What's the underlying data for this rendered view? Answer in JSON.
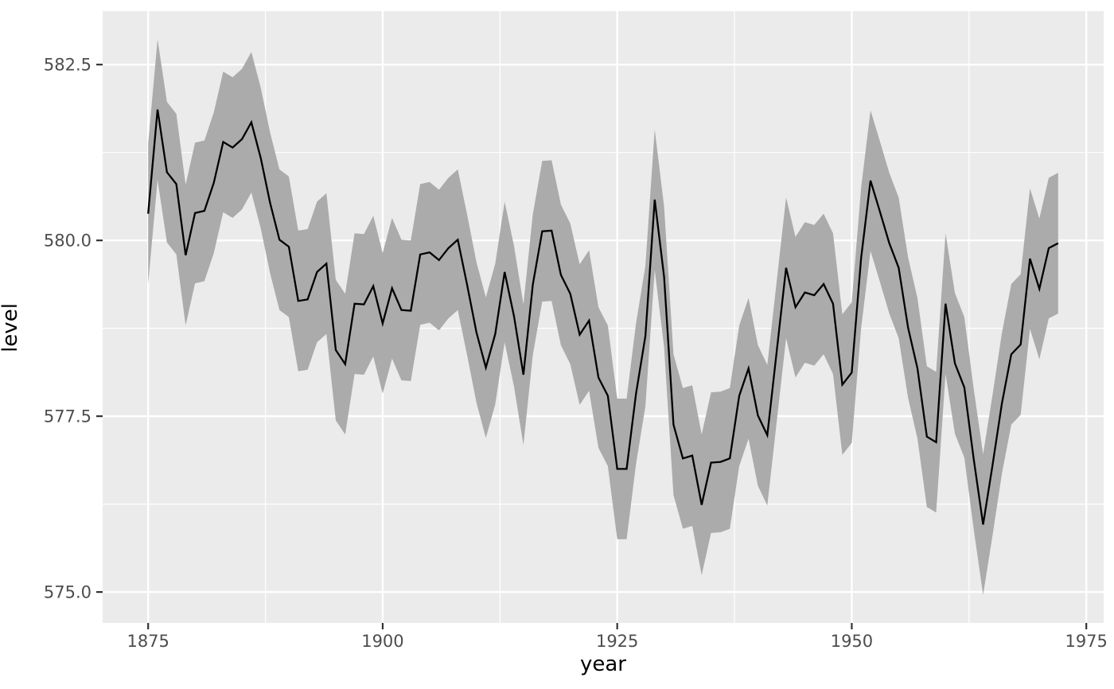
{
  "chart_data": {
    "type": "line",
    "title": "",
    "xlabel": "year",
    "ylabel": "level",
    "series": [
      {
        "name": "level",
        "x_years_range": [
          1875,
          1972
        ],
        "x_step": 1,
        "values": [
          580.38,
          581.86,
          580.97,
          580.8,
          579.79,
          580.39,
          580.42,
          580.82,
          581.4,
          581.32,
          581.44,
          581.68,
          581.17,
          580.53,
          580.01,
          579.91,
          579.14,
          579.16,
          579.55,
          579.67,
          578.44,
          578.24,
          579.1,
          579.09,
          579.35,
          578.82,
          579.32,
          579.01,
          579.0,
          579.8,
          579.83,
          579.72,
          579.89,
          580.01,
          579.37,
          578.69,
          578.19,
          578.67,
          579.55,
          578.92,
          578.09,
          579.37,
          580.13,
          580.14,
          579.51,
          579.24,
          578.66,
          578.86,
          578.05,
          577.79,
          576.75,
          576.75,
          577.82,
          578.64,
          580.58,
          579.48,
          577.38,
          576.9,
          576.94,
          576.24,
          576.84,
          576.85,
          576.9,
          577.79,
          578.18,
          577.51,
          577.23,
          578.42,
          579.61,
          579.05,
          579.26,
          579.22,
          579.38,
          579.1,
          577.95,
          578.12,
          579.75,
          580.85,
          580.41,
          579.96,
          579.61,
          578.76,
          578.18,
          577.21,
          577.13,
          579.1,
          578.25,
          577.91,
          576.89,
          575.96,
          576.8,
          577.68,
          578.38,
          578.52,
          579.74,
          579.31,
          579.89,
          579.96
        ],
        "ribbon_halfwidth": 1.0
      }
    ],
    "xticks": [
      1875,
      1900,
      1925,
      1950,
      1975
    ],
    "xtick_labels": [
      "1875",
      "1900",
      "1925",
      "1950",
      "1975"
    ],
    "yticks": [
      575.0,
      577.5,
      580.0,
      582.5
    ],
    "ytick_labels": [
      "575.0",
      "577.5",
      "580.0",
      "582.5"
    ],
    "xticks_minor": [
      1887.5,
      1912.5,
      1937.5,
      1962.5
    ],
    "yticks_minor": [
      576.25,
      578.75,
      581.25
    ],
    "xlim": [
      1870.15,
      1976.85
    ],
    "ylim": [
      574.56,
      583.26
    ],
    "grid": true,
    "legend_position": "none",
    "colors": {
      "page_bg": "#FFFFFF",
      "panel_bg": "#EBEBEB",
      "grid_major": "#FFFFFF",
      "grid_minor": "#FFFFFF",
      "ribbon_fill": "#ABABAB",
      "line": "#000000",
      "tick_mark": "#333333",
      "tick_text": "#4D4D4D",
      "axis_title_text": "#000000"
    }
  }
}
